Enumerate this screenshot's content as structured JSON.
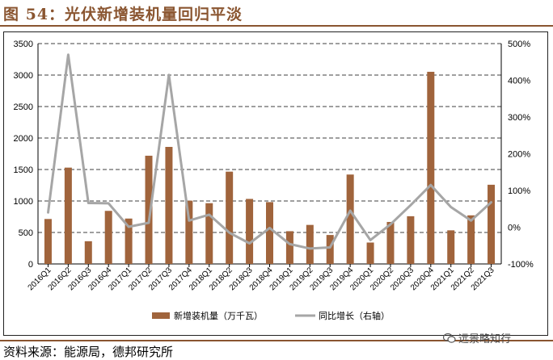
{
  "figure": {
    "title": "图 54：光伏新增装机量回归平淡",
    "source": "资料来源：能源局，德邦研究所",
    "watermark": "远景略知行",
    "watermark_icon": "wechat-icon"
  },
  "chart_data": {
    "type": "bar",
    "categories": [
      "2016Q1",
      "2016Q2",
      "2016Q3",
      "2016Q4",
      "2017Q1",
      "2017Q2",
      "2017Q3",
      "2017Q4",
      "2018Q1",
      "2018Q2",
      "2018Q3",
      "2018Q4",
      "2019Q1",
      "2019Q2",
      "2019Q3",
      "2019Q4",
      "2020Q1",
      "2020Q2",
      "2020Q3",
      "2020Q4",
      "2021Q1",
      "2021Q2",
      "2021Q3"
    ],
    "series": [
      {
        "name": "新增装机量（万千瓦）",
        "type": "bar",
        "axis": "left",
        "color": "#a0643c",
        "values": [
          714,
          1530,
          361,
          843,
          721,
          1719,
          1859,
          1005,
          965,
          1466,
          1033,
          982,
          520,
          620,
          460,
          1420,
          340,
          667,
          758,
          3052,
          534,
          772,
          1258
        ]
      },
      {
        "name": "同比增长（右轴）",
        "type": "line",
        "axis": "right",
        "color": "#a6a6a6",
        "values": [
          40,
          470,
          66,
          65,
          1,
          12,
          415,
          18,
          34,
          -15,
          -44,
          -2,
          -46,
          -58,
          -55,
          45,
          -35,
          8,
          60,
          115,
          55,
          18,
          68
        ]
      }
    ],
    "y_left": {
      "min": 0,
      "max": 3500,
      "ticks": [
        "0",
        "500",
        "1000",
        "1500",
        "2000",
        "2500",
        "3000",
        "3500"
      ]
    },
    "y_right": {
      "min": -100,
      "max": 500,
      "ticks": [
        "-100%",
        "0%",
        "100%",
        "200%",
        "300%",
        "400%",
        "500%"
      ]
    },
    "grid": "horizontal-dashed",
    "legend_position": "bottom"
  }
}
